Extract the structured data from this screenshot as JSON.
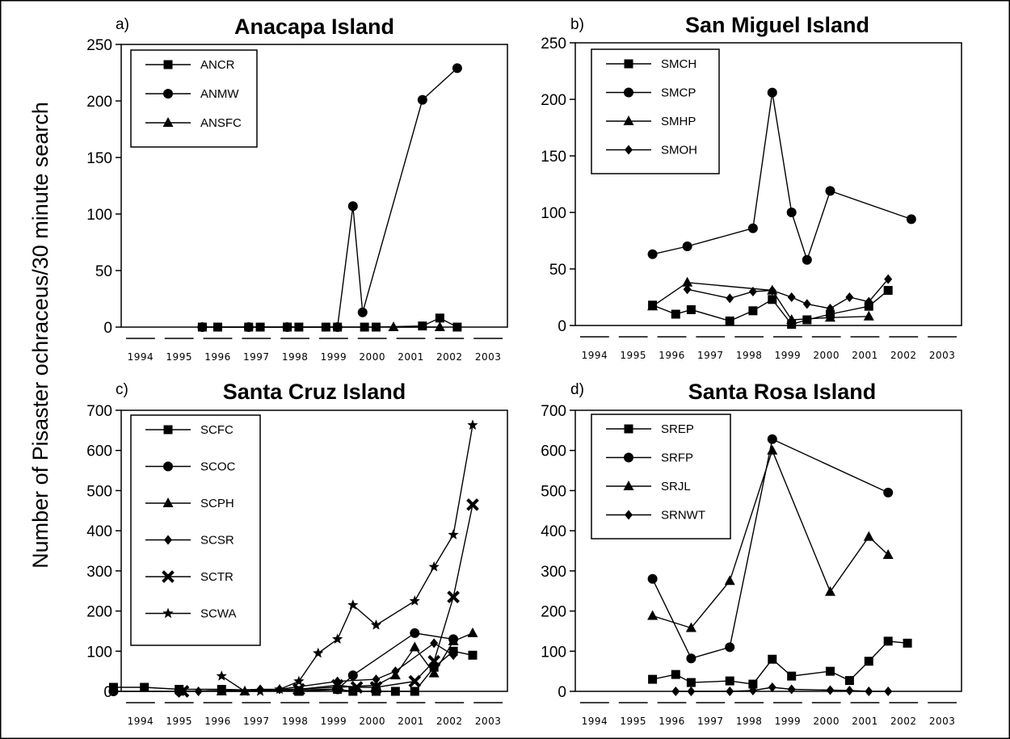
{
  "figure": {
    "ylabel": "Number of Pisaster ochraceus/30 minute search"
  },
  "years": [
    "1994",
    "1995",
    "1996",
    "1997",
    "1998",
    "1999",
    "2000",
    "2001",
    "2002",
    "2003"
  ],
  "chart_data": [
    {
      "type": "line",
      "letter": "a)",
      "title": "Anacapa Island",
      "ylim": [
        0,
        250
      ],
      "yticks": [
        "0",
        "50",
        "100",
        "150",
        "200",
        "250"
      ],
      "legend_position": "top-left",
      "series": [
        {
          "name": "ANCR",
          "marker": "square",
          "points": [
            [
              1996.1,
              0
            ],
            [
              1996.5,
              0
            ],
            [
              1997.3,
              0
            ],
            [
              1997.6,
              0
            ],
            [
              1998.3,
              0
            ],
            [
              1998.6,
              0
            ],
            [
              1999.3,
              0
            ],
            [
              1999.6,
              0
            ],
            [
              2000.3,
              0
            ],
            [
              2000.6,
              0
            ],
            [
              2001.8,
              1
            ],
            [
              2002.25,
              8
            ],
            [
              2002.7,
              0
            ]
          ]
        },
        {
          "name": "ANMW",
          "marker": "circle",
          "points": [
            [
              1996.1,
              0
            ],
            [
              1997.3,
              0
            ],
            [
              1998.3,
              0
            ],
            [
              1999.6,
              0
            ],
            [
              2000.0,
              107
            ],
            [
              2000.25,
              13
            ],
            [
              2001.8,
              201
            ],
            [
              2002.7,
              229
            ]
          ]
        },
        {
          "name": "ANSFC",
          "marker": "triangle",
          "points": [
            [
              2001.05,
              0
            ],
            [
              2002.25,
              0
            ]
          ]
        }
      ]
    },
    {
      "type": "line",
      "letter": "b)",
      "title": "San Miguel Island",
      "ylim": [
        0,
        250
      ],
      "yticks": [
        "0",
        "50",
        "100",
        "150",
        "200",
        "250"
      ],
      "legend_position": "top-left",
      "series": [
        {
          "name": "SMCH",
          "marker": "square",
          "points": [
            [
              1996.0,
              18
            ],
            [
              1996.6,
              10
            ],
            [
              1997.0,
              14
            ],
            [
              1998.0,
              4
            ],
            [
              1998.6,
              13
            ],
            [
              1999.1,
              23
            ],
            [
              1999.6,
              1
            ],
            [
              2000.0,
              5
            ],
            [
              2000.6,
              10
            ],
            [
              2001.6,
              17
            ],
            [
              2002.1,
              31
            ]
          ]
        },
        {
          "name": "SMCP",
          "marker": "circle",
          "points": [
            [
              1996.0,
              63
            ],
            [
              1996.9,
              70
            ],
            [
              1998.6,
              86
            ],
            [
              1999.1,
              206
            ],
            [
              1999.6,
              100
            ],
            [
              2000.0,
              58
            ],
            [
              2000.6,
              119
            ],
            [
              2002.7,
              94
            ]
          ]
        },
        {
          "name": "SMHP",
          "marker": "triangle",
          "points": [
            [
              1996.0,
              17
            ],
            [
              1996.9,
              38
            ],
            [
              1999.1,
              31
            ],
            [
              1999.6,
              5
            ],
            [
              2000.6,
              7
            ],
            [
              2001.6,
              8
            ]
          ]
        },
        {
          "name": "SMOH",
          "marker": "diamond",
          "points": [
            [
              1996.9,
              32
            ],
            [
              1998.0,
              24
            ],
            [
              1998.6,
              30
            ],
            [
              1999.1,
              31
            ],
            [
              1999.6,
              25
            ],
            [
              2000.0,
              19
            ],
            [
              2000.6,
              15
            ],
            [
              2001.1,
              25
            ],
            [
              2001.6,
              21
            ],
            [
              2002.1,
              41
            ]
          ]
        }
      ]
    },
    {
      "type": "line",
      "letter": "c)",
      "title": "Santa Cruz Island",
      "ylim": [
        0,
        700
      ],
      "yticks": [
        "0",
        "100",
        "200",
        "300",
        "400",
        "500",
        "600",
        "700"
      ],
      "legend_position": "top-left",
      "series": [
        {
          "name": "SCFC",
          "marker": "square",
          "points": [
            [
              1993.8,
              10
            ],
            [
              1994.6,
              10
            ],
            [
              1995.5,
              5
            ],
            [
              1996.6,
              5
            ],
            [
              1998.6,
              0
            ],
            [
              1999.6,
              5
            ],
            [
              2000.0,
              0
            ],
            [
              2000.6,
              0
            ],
            [
              2001.1,
              0
            ],
            [
              2001.6,
              0
            ],
            [
              2002.1,
              60
            ],
            [
              2002.6,
              100
            ],
            [
              2003.1,
              90
            ]
          ]
        },
        {
          "name": "SCOC",
          "marker": "circle",
          "points": [
            [
              1993.8,
              0
            ],
            [
              1995.5,
              0
            ],
            [
              1999.6,
              5
            ],
            [
              2000.0,
              40
            ],
            [
              2001.6,
              145
            ],
            [
              2002.6,
              130
            ]
          ]
        },
        {
          "name": "SCPH",
          "marker": "triangle",
          "points": [
            [
              1996.6,
              0
            ],
            [
              1997.2,
              0
            ],
            [
              1999.6,
              10
            ],
            [
              2000.6,
              15
            ],
            [
              2001.1,
              40
            ],
            [
              2001.6,
              110
            ],
            [
              2002.1,
              45
            ],
            [
              2002.6,
              125
            ],
            [
              2003.1,
              145
            ]
          ]
        },
        {
          "name": "SCSR",
          "marker": "diamond",
          "points": [
            [
              1995.6,
              0
            ],
            [
              1996.0,
              0
            ],
            [
              1997.6,
              5
            ],
            [
              1998.1,
              5
            ],
            [
              1999.6,
              25
            ],
            [
              2000.6,
              30
            ],
            [
              2001.1,
              50
            ],
            [
              2002.1,
              120
            ],
            [
              2002.6,
              90
            ]
          ]
        },
        {
          "name": "SCTR",
          "marker": "cross",
          "points": [
            [
              1995.6,
              0
            ],
            [
              1998.6,
              5
            ],
            [
              1999.6,
              15
            ],
            [
              2000.1,
              10
            ],
            [
              2000.6,
              10
            ],
            [
              2001.6,
              25
            ],
            [
              2002.1,
              75
            ],
            [
              2002.6,
              235
            ],
            [
              2003.1,
              465
            ]
          ]
        },
        {
          "name": "SCWA",
          "marker": "star",
          "points": [
            [
              1996.6,
              38
            ],
            [
              1997.2,
              0
            ],
            [
              1997.6,
              0
            ],
            [
              1998.1,
              5
            ],
            [
              1998.6,
              25
            ],
            [
              1999.1,
              95
            ],
            [
              1999.6,
              130
            ],
            [
              2000.0,
              215
            ],
            [
              2000.6,
              165
            ],
            [
              2001.6,
              225
            ],
            [
              2002.1,
              310
            ],
            [
              2002.6,
              390
            ],
            [
              2003.1,
              663
            ]
          ]
        }
      ]
    },
    {
      "type": "line",
      "letter": "d)",
      "title": "Santa Rosa Island",
      "ylim": [
        0,
        700
      ],
      "yticks": [
        "0",
        "100",
        "200",
        "300",
        "400",
        "500",
        "600",
        "700"
      ],
      "legend_position": "top-left",
      "series": [
        {
          "name": "SREP",
          "marker": "square",
          "points": [
            [
              1996.0,
              30
            ],
            [
              1996.6,
              42
            ],
            [
              1997.0,
              22
            ],
            [
              1998.0,
              26
            ],
            [
              1998.6,
              18
            ],
            [
              1999.1,
              80
            ],
            [
              1999.6,
              38
            ],
            [
              2000.6,
              50
            ],
            [
              2001.1,
              27
            ],
            [
              2001.6,
              75
            ],
            [
              2002.1,
              125
            ],
            [
              2002.6,
              120
            ]
          ]
        },
        {
          "name": "SRFP",
          "marker": "circle",
          "points": [
            [
              1996.0,
              280
            ],
            [
              1997.0,
              82
            ],
            [
              1998.0,
              110
            ],
            [
              1999.1,
              628
            ],
            [
              2002.1,
              495
            ]
          ]
        },
        {
          "name": "SRJL",
          "marker": "triangle",
          "points": [
            [
              1996.0,
              188
            ],
            [
              1997.0,
              158
            ],
            [
              1998.0,
              275
            ],
            [
              1999.1,
              600
            ],
            [
              2000.6,
              248
            ],
            [
              2001.6,
              385
            ],
            [
              2002.1,
              340
            ]
          ]
        },
        {
          "name": "SRNWT",
          "marker": "diamond",
          "points": [
            [
              1996.6,
              0
            ],
            [
              1997.0,
              0
            ],
            [
              1998.0,
              0
            ],
            [
              1998.6,
              2
            ],
            [
              1999.1,
              10
            ],
            [
              1999.6,
              5
            ],
            [
              2000.6,
              3
            ],
            [
              2001.1,
              2
            ],
            [
              2001.6,
              0
            ],
            [
              2002.1,
              0
            ]
          ]
        }
      ]
    }
  ]
}
